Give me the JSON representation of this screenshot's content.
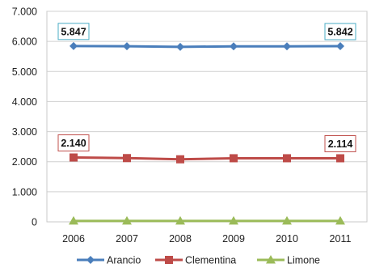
{
  "chart_data": {
    "type": "line",
    "title": "",
    "xlabel": "",
    "ylabel": "",
    "categories": [
      "2006",
      "2007",
      "2008",
      "2009",
      "2010",
      "2011"
    ],
    "ylim": [
      0,
      7000
    ],
    "yticks": [
      "0",
      "1.000",
      "2.000",
      "3.000",
      "4.000",
      "5.000",
      "6.000",
      "7.000"
    ],
    "grid": "horizontal",
    "legend": "bottom",
    "series": [
      {
        "name": "Arancio",
        "values": [
          5847,
          5838,
          5820,
          5835,
          5836,
          5842
        ],
        "color": "#4a7ebb",
        "marker": "diamond",
        "labels": [
          {
            "index": 0,
            "text": "5.847",
            "border": "#4bacc6"
          },
          {
            "index": 5,
            "text": "5.842",
            "border": "#4bacc6"
          }
        ]
      },
      {
        "name": "Clementina",
        "values": [
          2140,
          2120,
          2080,
          2115,
          2115,
          2114
        ],
        "color": "#be4b48",
        "marker": "square",
        "labels": [
          {
            "index": 0,
            "text": "2.140",
            "border": "#c0504d"
          },
          {
            "index": 5,
            "text": "2.114",
            "border": "#c0504d"
          }
        ]
      },
      {
        "name": "Limone",
        "values": [
          30,
          30,
          30,
          30,
          30,
          30
        ],
        "color": "#9bbb59",
        "marker": "triangle",
        "labels": []
      }
    ]
  }
}
